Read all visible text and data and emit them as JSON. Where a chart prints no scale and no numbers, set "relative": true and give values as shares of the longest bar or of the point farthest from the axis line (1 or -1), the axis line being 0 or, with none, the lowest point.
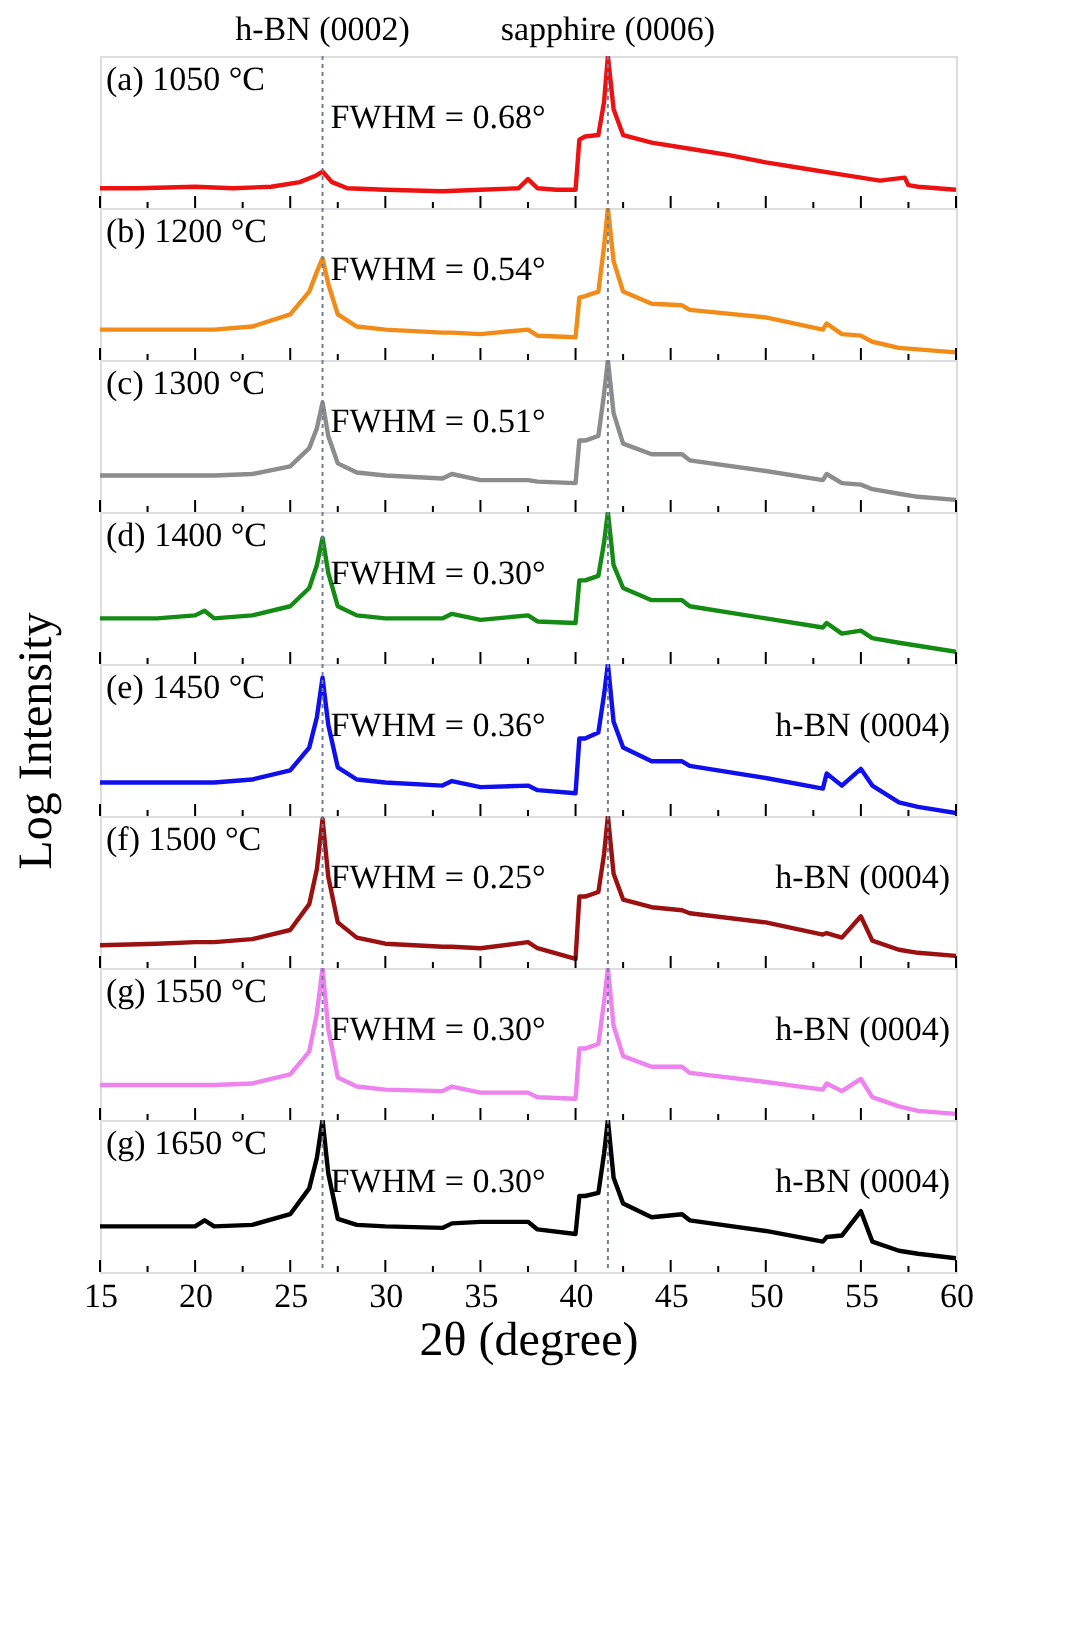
{
  "chart_data": [
    {
      "type": "line",
      "relative": true,
      "tick_labels": false,
      "xlim": [
        15,
        60
      ],
      "xticks": [
        15,
        {
          "value": 17.5,
          "label": null
        },
        20,
        {
          "value": 22.5,
          "label": null
        },
        25,
        {
          "value": 27.5,
          "label": null
        },
        30,
        {
          "value": 32.5,
          "label": null
        },
        35,
        {
          "value": 37.5,
          "label": null
        },
        40,
        {
          "value": 42.5,
          "label": null
        },
        45,
        {
          "value": 47.5,
          "label": null
        },
        50,
        {
          "value": 52.5,
          "label": null
        },
        55,
        {
          "value": 57.5,
          "label": null
        },
        60
      ],
      "annotations": [
        "(a) 1050 °C",
        "FWHM = 0.68°"
      ],
      "ref_lines": [
        {
          "axis": "x",
          "value": 26.7,
          "label": "h-BN (0002)",
          "color": "#6f7f99",
          "line_style": "dotted"
        },
        {
          "axis": "x",
          "value": 41.7,
          "label": "sapphire (0006)",
          "color": "#6f7f99",
          "line_style": "dotted"
        }
      ],
      "series": [
        {
          "color": "#ee1111",
          "x": [
            15,
            17,
            20,
            22,
            24,
            25.5,
            26.3,
            26.7,
            27.2,
            28,
            30,
            33,
            35,
            37,
            37.5,
            38,
            39,
            40,
            40.2,
            40.5,
            41.2,
            41.5,
            41.7,
            42,
            42.5,
            44,
            46,
            48,
            50,
            52,
            54,
            56,
            57.3,
            57.5,
            58,
            60
          ],
          "values": [
            0.13,
            0.13,
            0.14,
            0.13,
            0.14,
            0.17,
            0.21,
            0.24,
            0.17,
            0.13,
            0.12,
            0.11,
            0.12,
            0.13,
            0.19,
            0.13,
            0.12,
            0.12,
            0.45,
            0.47,
            0.48,
            0.7,
            1.0,
            0.65,
            0.48,
            0.43,
            0.39,
            0.35,
            0.3,
            0.26,
            0.22,
            0.18,
            0.2,
            0.15,
            0.14,
            0.12
          ]
        }
      ]
    },
    {
      "type": "line",
      "relative": true,
      "tick_labels": false,
      "xlim": [
        15,
        60
      ],
      "xticks": [
        15,
        {
          "value": 17.5,
          "label": null
        },
        20,
        {
          "value": 22.5,
          "label": null
        },
        25,
        {
          "value": 27.5,
          "label": null
        },
        30,
        {
          "value": 32.5,
          "label": null
        },
        35,
        {
          "value": 37.5,
          "label": null
        },
        40,
        {
          "value": 42.5,
          "label": null
        },
        45,
        {
          "value": 47.5,
          "label": null
        },
        50,
        {
          "value": 52.5,
          "label": null
        },
        55,
        {
          "value": 57.5,
          "label": null
        },
        60
      ],
      "annotations": [
        "(b) 1200 °C",
        "FWHM = 0.54°"
      ],
      "ref_lines": [
        {
          "axis": "x",
          "value": 26.7,
          "color": "#6f7f99",
          "line_style": "dotted"
        },
        {
          "axis": "x",
          "value": 41.7,
          "color": "#6f7f99",
          "line_style": "dotted"
        }
      ],
      "series": [
        {
          "color": "#f28c18",
          "x": [
            15,
            18,
            20,
            20.5,
            21,
            23,
            25,
            26,
            26.4,
            26.7,
            27,
            27.5,
            28.5,
            30,
            33,
            33.5,
            35,
            37.5,
            38,
            40,
            40.2,
            40.5,
            41.2,
            41.5,
            41.7,
            42,
            42.5,
            44,
            45.6,
            46,
            50,
            53,
            53.2,
            54,
            55,
            55.6,
            57,
            58,
            60
          ],
          "values": [
            0.2,
            0.2,
            0.2,
            0.2,
            0.2,
            0.22,
            0.3,
            0.45,
            0.58,
            0.67,
            0.5,
            0.3,
            0.22,
            0.2,
            0.18,
            0.18,
            0.17,
            0.2,
            0.16,
            0.15,
            0.41,
            0.42,
            0.45,
            0.75,
            1.0,
            0.65,
            0.45,
            0.37,
            0.36,
            0.33,
            0.28,
            0.2,
            0.24,
            0.17,
            0.16,
            0.12,
            0.08,
            0.07,
            0.05
          ]
        }
      ]
    },
    {
      "type": "line",
      "relative": true,
      "tick_labels": false,
      "xlim": [
        15,
        60
      ],
      "xticks": [
        15,
        {
          "value": 17.5,
          "label": null
        },
        20,
        {
          "value": 22.5,
          "label": null
        },
        25,
        {
          "value": 27.5,
          "label": null
        },
        30,
        {
          "value": 32.5,
          "label": null
        },
        35,
        {
          "value": 37.5,
          "label": null
        },
        40,
        {
          "value": 42.5,
          "label": null
        },
        45,
        {
          "value": 47.5,
          "label": null
        },
        50,
        {
          "value": 52.5,
          "label": null
        },
        55,
        {
          "value": 57.5,
          "label": null
        },
        60
      ],
      "annotations": [
        "(c) 1300 °C",
        "FWHM = 0.51°"
      ],
      "ref_lines": [
        {
          "axis": "x",
          "value": 26.7,
          "color": "#6f7f99",
          "line_style": "dotted"
        },
        {
          "axis": "x",
          "value": 41.7,
          "color": "#6f7f99",
          "line_style": "dotted"
        }
      ],
      "series": [
        {
          "color": "#8c8c8c",
          "x": [
            15,
            18,
            20,
            20.5,
            21,
            23,
            25,
            26,
            26.4,
            26.7,
            27,
            27.5,
            28.5,
            30,
            33,
            33.5,
            35,
            37.5,
            38,
            40,
            40.2,
            40.5,
            41.2,
            41.5,
            41.7,
            42,
            42.5,
            44,
            45.6,
            46,
            50,
            53,
            53.2,
            54,
            55,
            55.6,
            57,
            58,
            60
          ],
          "values": [
            0.24,
            0.24,
            0.24,
            0.24,
            0.24,
            0.25,
            0.3,
            0.42,
            0.55,
            0.72,
            0.5,
            0.32,
            0.26,
            0.24,
            0.22,
            0.25,
            0.21,
            0.21,
            0.2,
            0.19,
            0.47,
            0.47,
            0.5,
            0.78,
            1.0,
            0.65,
            0.45,
            0.38,
            0.38,
            0.34,
            0.27,
            0.21,
            0.25,
            0.19,
            0.18,
            0.15,
            0.12,
            0.1,
            0.08
          ]
        }
      ]
    },
    {
      "type": "line",
      "relative": true,
      "tick_labels": false,
      "xlim": [
        15,
        60
      ],
      "xticks": [
        15,
        {
          "value": 17.5,
          "label": null
        },
        20,
        {
          "value": 22.5,
          "label": null
        },
        25,
        {
          "value": 27.5,
          "label": null
        },
        30,
        {
          "value": 32.5,
          "label": null
        },
        35,
        {
          "value": 37.5,
          "label": null
        },
        40,
        {
          "value": 42.5,
          "label": null
        },
        45,
        {
          "value": 47.5,
          "label": null
        },
        50,
        {
          "value": 52.5,
          "label": null
        },
        55,
        {
          "value": 57.5,
          "label": null
        },
        60
      ],
      "annotations": [
        "(d) 1400 °C",
        "FWHM = 0.30°"
      ],
      "ref_lines": [
        {
          "axis": "x",
          "value": 26.7,
          "color": "#6f7f99",
          "line_style": "dotted"
        },
        {
          "axis": "x",
          "value": 41.7,
          "color": "#6f7f99",
          "line_style": "dotted"
        }
      ],
      "series": [
        {
          "color": "#148c14",
          "x": [
            15,
            18,
            20,
            20.5,
            21,
            23,
            25,
            26,
            26.4,
            26.7,
            27,
            27.5,
            28.5,
            30,
            33,
            33.5,
            35,
            37.5,
            38,
            40,
            40.2,
            40.5,
            41.2,
            41.5,
            41.7,
            42,
            42.5,
            44,
            45.6,
            46,
            50,
            53,
            53.2,
            54,
            55,
            55.6,
            57,
            58,
            60
          ],
          "values": [
            0.3,
            0.3,
            0.32,
            0.35,
            0.3,
            0.32,
            0.38,
            0.5,
            0.65,
            0.83,
            0.6,
            0.38,
            0.32,
            0.3,
            0.3,
            0.33,
            0.29,
            0.32,
            0.28,
            0.27,
            0.55,
            0.55,
            0.58,
            0.8,
            1.0,
            0.65,
            0.5,
            0.42,
            0.42,
            0.38,
            0.3,
            0.24,
            0.27,
            0.2,
            0.22,
            0.17,
            0.14,
            0.12,
            0.08
          ]
        }
      ]
    },
    {
      "type": "line",
      "relative": true,
      "tick_labels": false,
      "ylabel": "Log Intensity",
      "xlim": [
        15,
        60
      ],
      "xticks": [
        15,
        {
          "value": 17.5,
          "label": null
        },
        20,
        {
          "value": 22.5,
          "label": null
        },
        25,
        {
          "value": 27.5,
          "label": null
        },
        30,
        {
          "value": 32.5,
          "label": null
        },
        35,
        {
          "value": 37.5,
          "label": null
        },
        40,
        {
          "value": 42.5,
          "label": null
        },
        45,
        {
          "value": 47.5,
          "label": null
        },
        50,
        {
          "value": 52.5,
          "label": null
        },
        55,
        {
          "value": 57.5,
          "label": null
        },
        60
      ],
      "annotations": [
        "(e) 1450 °C",
        "FWHM = 0.36°",
        "h-BN (0004)"
      ],
      "ref_lines": [
        {
          "axis": "x",
          "value": 26.7,
          "color": "#6f7f99",
          "line_style": "dotted"
        },
        {
          "axis": "x",
          "value": 41.7,
          "color": "#6f7f99",
          "line_style": "dotted"
        }
      ],
      "series": [
        {
          "color": "#1010ee",
          "x": [
            15,
            18,
            20,
            20.5,
            21,
            23,
            25,
            26,
            26.4,
            26.7,
            27,
            27.5,
            28.5,
            30,
            33,
            33.5,
            35,
            37.5,
            38,
            40,
            40.2,
            40.5,
            41.2,
            41.5,
            41.7,
            42,
            42.5,
            44,
            45.6,
            46,
            50,
            53,
            53.2,
            54,
            55,
            55.6,
            57,
            58,
            60
          ],
          "values": [
            0.22,
            0.22,
            0.22,
            0.22,
            0.22,
            0.24,
            0.3,
            0.45,
            0.65,
            0.91,
            0.6,
            0.32,
            0.24,
            0.22,
            0.2,
            0.23,
            0.19,
            0.2,
            0.17,
            0.15,
            0.51,
            0.51,
            0.55,
            0.8,
            1.0,
            0.62,
            0.45,
            0.36,
            0.36,
            0.33,
            0.25,
            0.18,
            0.28,
            0.2,
            0.31,
            0.2,
            0.09,
            0.06,
            0.02
          ]
        }
      ]
    },
    {
      "type": "line",
      "relative": true,
      "tick_labels": false,
      "xlim": [
        15,
        60
      ],
      "xticks": [
        15,
        {
          "value": 17.5,
          "label": null
        },
        20,
        {
          "value": 22.5,
          "label": null
        },
        25,
        {
          "value": 27.5,
          "label": null
        },
        30,
        {
          "value": 32.5,
          "label": null
        },
        35,
        {
          "value": 37.5,
          "label": null
        },
        40,
        {
          "value": 42.5,
          "label": null
        },
        45,
        {
          "value": 47.5,
          "label": null
        },
        50,
        {
          "value": 52.5,
          "label": null
        },
        55,
        {
          "value": 57.5,
          "label": null
        },
        60
      ],
      "annotations": [
        "(f) 1500 °C",
        "FWHM = 0.25°",
        "h-BN (0004)"
      ],
      "ref_lines": [
        {
          "axis": "x",
          "value": 26.7,
          "color": "#6f7f99",
          "line_style": "dotted"
        },
        {
          "axis": "x",
          "value": 41.7,
          "color": "#6f7f99",
          "line_style": "dotted"
        }
      ],
      "series": [
        {
          "color": "#9b1010",
          "x": [
            15,
            18,
            20,
            20.5,
            21,
            23,
            25,
            26,
            26.4,
            26.7,
            27,
            27.5,
            28.5,
            30,
            33,
            33.5,
            35,
            37.5,
            38,
            40,
            40.2,
            40.5,
            41.2,
            41.5,
            41.7,
            42,
            42.5,
            44,
            45.6,
            46,
            50,
            53,
            53.2,
            54,
            55,
            55.6,
            57,
            58,
            60
          ],
          "values": [
            0.15,
            0.16,
            0.17,
            0.17,
            0.17,
            0.19,
            0.25,
            0.42,
            0.65,
            0.98,
            0.6,
            0.3,
            0.2,
            0.16,
            0.14,
            0.14,
            0.13,
            0.17,
            0.13,
            0.06,
            0.47,
            0.47,
            0.5,
            0.75,
            1.0,
            0.62,
            0.45,
            0.4,
            0.38,
            0.36,
            0.3,
            0.22,
            0.23,
            0.2,
            0.34,
            0.18,
            0.12,
            0.1,
            0.08
          ]
        }
      ]
    },
    {
      "type": "line",
      "relative": true,
      "tick_labels": false,
      "xlim": [
        15,
        60
      ],
      "xticks": [
        15,
        {
          "value": 17.5,
          "label": null
        },
        20,
        {
          "value": 22.5,
          "label": null
        },
        25,
        {
          "value": 27.5,
          "label": null
        },
        30,
        {
          "value": 32.5,
          "label": null
        },
        35,
        {
          "value": 37.5,
          "label": null
        },
        40,
        {
          "value": 42.5,
          "label": null
        },
        45,
        {
          "value": 47.5,
          "label": null
        },
        50,
        {
          "value": 52.5,
          "label": null
        },
        55,
        {
          "value": 57.5,
          "label": null
        },
        60
      ],
      "annotations": [
        "(g) 1550 °C",
        "FWHM = 0.30°",
        "h-BN (0004)"
      ],
      "ref_lines": [
        {
          "axis": "x",
          "value": 26.7,
          "color": "#6f7f99",
          "line_style": "dotted"
        },
        {
          "axis": "x",
          "value": 41.7,
          "color": "#6f7f99",
          "line_style": "dotted"
        }
      ],
      "series": [
        {
          "color": "#ee82ee",
          "x": [
            15,
            18,
            20,
            20.5,
            21,
            23,
            25,
            26,
            26.4,
            26.7,
            27,
            27.5,
            28.5,
            30,
            33,
            33.5,
            35,
            37.5,
            38,
            40,
            40.2,
            40.5,
            41.2,
            41.5,
            41.7,
            42,
            42.5,
            44,
            45.6,
            46,
            50,
            53,
            53.2,
            54,
            55,
            55.6,
            57,
            58,
            60
          ],
          "values": [
            0.23,
            0.23,
            0.23,
            0.23,
            0.23,
            0.24,
            0.3,
            0.45,
            0.7,
            1.0,
            0.6,
            0.28,
            0.22,
            0.2,
            0.19,
            0.22,
            0.18,
            0.18,
            0.15,
            0.14,
            0.47,
            0.47,
            0.5,
            0.78,
            1.0,
            0.62,
            0.42,
            0.35,
            0.35,
            0.31,
            0.25,
            0.2,
            0.24,
            0.19,
            0.27,
            0.15,
            0.09,
            0.06,
            0.04
          ]
        }
      ]
    },
    {
      "type": "line",
      "relative": true,
      "tick_labels": "x",
      "xlabel": "2θ (degree)",
      "xlim": [
        15,
        60
      ],
      "xticks": [
        15,
        {
          "value": 17.5,
          "label": null
        },
        20,
        {
          "value": 22.5,
          "label": null
        },
        25,
        {
          "value": 27.5,
          "label": null
        },
        30,
        {
          "value": 32.5,
          "label": null
        },
        35,
        {
          "value": 37.5,
          "label": null
        },
        40,
        {
          "value": 42.5,
          "label": null
        },
        45,
        {
          "value": 47.5,
          "label": null
        },
        50,
        {
          "value": 52.5,
          "label": null
        },
        55,
        {
          "value": 57.5,
          "label": null
        },
        60
      ],
      "annotations": [
        "(g) 1650 °C",
        "FWHM = 0.30°",
        "h-BN (0004)"
      ],
      "ref_lines": [
        {
          "axis": "x",
          "value": 26.7,
          "color": "#6f7f99",
          "line_style": "dotted"
        },
        {
          "axis": "x",
          "value": 41.7,
          "color": "#6f7f99",
          "line_style": "dotted"
        }
      ],
      "series": [
        {
          "color": "#000000",
          "x": [
            15,
            18,
            20,
            20.5,
            21,
            23,
            25,
            26,
            26.4,
            26.7,
            27,
            27.5,
            28.5,
            30,
            33,
            33.5,
            35,
            37.5,
            38,
            40,
            40.2,
            40.5,
            41.2,
            41.5,
            41.7,
            42,
            42.5,
            44,
            45.6,
            46,
            50,
            53,
            53.2,
            54,
            55,
            55.6,
            57,
            58,
            60
          ],
          "values": [
            0.3,
            0.3,
            0.3,
            0.34,
            0.3,
            0.31,
            0.38,
            0.55,
            0.75,
            1.0,
            0.65,
            0.35,
            0.31,
            0.3,
            0.29,
            0.32,
            0.33,
            0.33,
            0.28,
            0.25,
            0.5,
            0.5,
            0.52,
            0.78,
            1.0,
            0.62,
            0.45,
            0.36,
            0.38,
            0.34,
            0.27,
            0.2,
            0.23,
            0.24,
            0.4,
            0.2,
            0.14,
            0.12,
            0.09
          ]
        }
      ]
    }
  ]
}
